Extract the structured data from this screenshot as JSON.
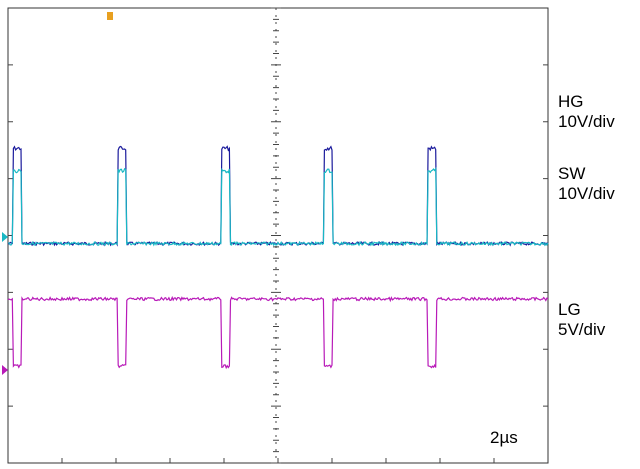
{
  "chart_data": {
    "type": "line",
    "title": "",
    "xlabel": "",
    "ylabel": "",
    "grid": true,
    "timebase": "2µs",
    "x_unit": "µs",
    "x_range": [
      -4.7,
      5.3
    ],
    "period_us": 1.92,
    "edges_us": [
      -4.61,
      -2.68,
      -0.76,
      1.15,
      3.06
    ],
    "high_width_us": 0.16,
    "series": [
      {
        "name": "HG",
        "scale": "10V/div",
        "color": "#1a1a9c",
        "low_div": -0.1,
        "high_div": 1.6,
        "profile": "hg"
      },
      {
        "name": "SW",
        "scale": "10V/div",
        "color": "#19b8c4",
        "low_div": -0.1,
        "high_div": 1.2,
        "profile": "sw"
      },
      {
        "name": "LG",
        "scale": "5V/div",
        "color": "#b81ab8",
        "low_div": -0.7,
        "high_div": 0.5,
        "profile": "lg"
      }
    ]
  },
  "labels": {
    "hg_name": "HG",
    "hg_scale": "10V/div",
    "sw_name": "SW",
    "sw_scale": "10V/div",
    "lg_name": "LG",
    "lg_scale": "5V/div",
    "timebase": "2µs"
  }
}
